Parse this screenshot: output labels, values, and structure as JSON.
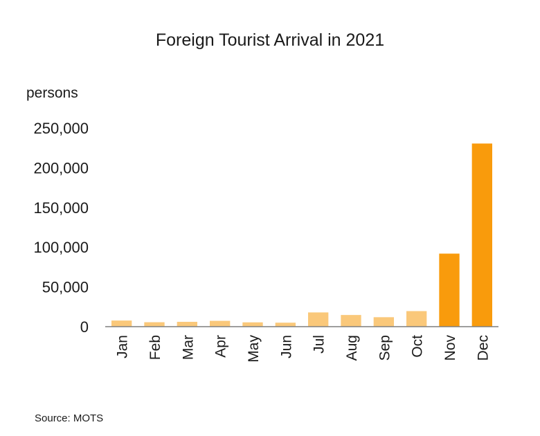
{
  "chart_data": {
    "type": "bar",
    "title": "Foreign Tourist Arrival in 2021",
    "ylabel": "persons",
    "xlabel": "",
    "categories": [
      "Jan",
      "Feb",
      "Mar",
      "Apr",
      "May",
      "Jun",
      "Jul",
      "Aug",
      "Sep",
      "Oct",
      "Nov",
      "Dec"
    ],
    "values": [
      7694,
      5581,
      6068,
      7332,
      5427,
      5008,
      17926,
      14680,
      11890,
      19569,
      91928,
      230497
    ],
    "ylim": [
      0,
      250000
    ],
    "yticks": [
      0,
      50000,
      100000,
      150000,
      200000,
      250000
    ],
    "ytick_labels": [
      "0",
      "50,000",
      "100,000",
      "150,000",
      "200,000",
      "250,000"
    ],
    "bar_colors": [
      "#fac87a",
      "#fac87a",
      "#fac87a",
      "#fac87a",
      "#fac87a",
      "#fac87a",
      "#fac87a",
      "#fac87a",
      "#fac87a",
      "#fac87a",
      "#f99b0c",
      "#f99b0c"
    ],
    "grid": false,
    "source": "Source: MOTS"
  }
}
